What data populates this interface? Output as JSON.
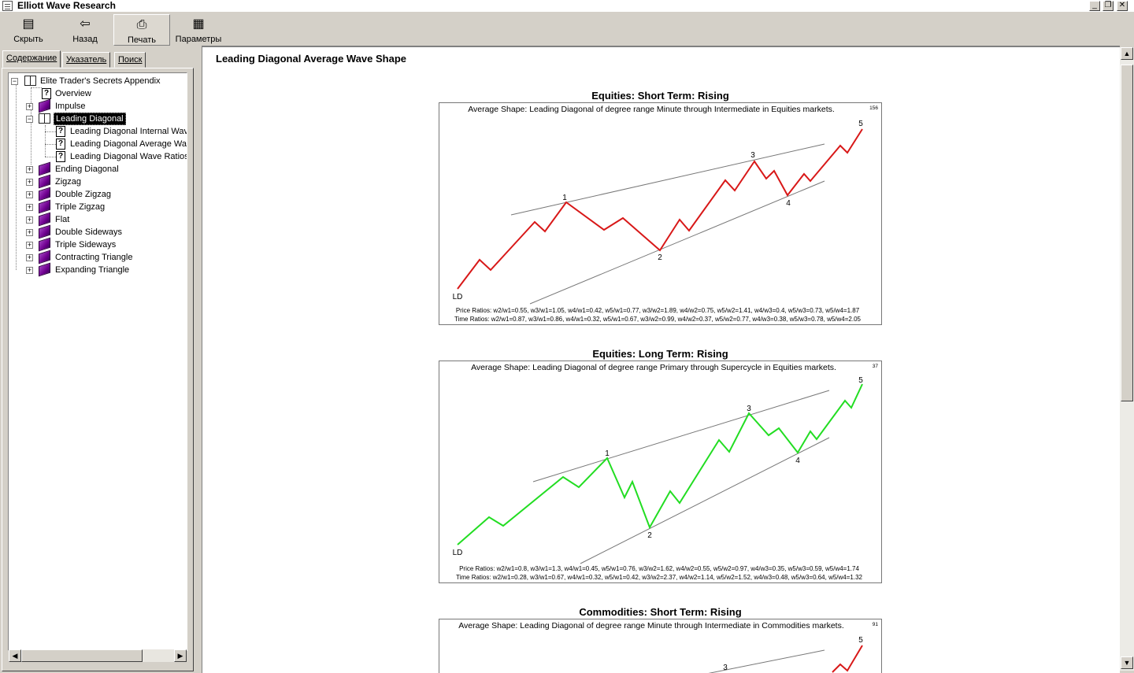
{
  "window": {
    "title": "Elliott Wave Research"
  },
  "toolbar": {
    "hide_label": "Скрыть",
    "back_label": "Назад",
    "print_label": "Печать",
    "options_label": "Параметры"
  },
  "tabs": {
    "contents": "Содержание",
    "index": "Указатель",
    "search": "Поиск"
  },
  "tree": {
    "root": "Elite Trader's Secrets Appendix",
    "overview": "Overview",
    "impulse": "Impulse",
    "leading_diagonal": "Leading Diagonal",
    "ld_internal": "Leading Diagonal Internal Wave Structure",
    "ld_average": "Leading Diagonal Average Wave Shape",
    "ld_ratios": "Leading Diagonal Wave Ratios",
    "ending_diagonal": "Ending Diagonal",
    "zigzag": "Zigzag",
    "double_zigzag": "Double Zigzag",
    "triple_zigzag": "Triple Zigzag",
    "flat": "Flat",
    "double_sideways": "Double Sideways",
    "triple_sideways": "Triple Sideways",
    "contracting_triangle": "Contracting Triangle",
    "expanding_triangle": "Expanding Triangle"
  },
  "page": {
    "heading": "Leading Diagonal Average Wave Shape"
  },
  "charts": [
    {
      "title": "Equities: Short Term: Rising",
      "subtitle": "Average Shape: Leading Diagonal of degree range Minute through Intermediate in Equities markets.",
      "count": "156",
      "color": "#d81818",
      "price_ratios": "Price Ratios: w2/w1=0.55, w3/w1=1.05, w4/w1=0.42, w5/w1=0.77, w3/w2=1.89, w4/w2=0.75, w5/w2=1.41, w4/w3=0.4, w5/w3=0.73, w5/w4=1.87",
      "time_ratios": "Time Ratios: w2/w1=0.87, w3/w1=0.86, w4/w1=0.32, w5/w1=0.67, w3/w2=0.99, w4/w2=0.37, w5/w2=0.77, w4/w3=0.38, w5/w3=0.78, w5/w4=2.05",
      "wave_labels": [
        "LD",
        "1",
        "2",
        "3",
        "4",
        "5"
      ]
    },
    {
      "title": "Equities: Long Term: Rising",
      "subtitle": "Average Shape: Leading Diagonal of degree range Primary through Supercycle in Equities markets.",
      "count": "37",
      "color": "#22dd22",
      "price_ratios": "Price Ratios: w2/w1=0.8, w3/w1=1.3, w4/w1=0.45, w5/w1=0.76, w3/w2=1.62, w4/w2=0.55, w5/w2=0.97, w4/w3=0.35, w5/w3=0.59, w5/w4=1.74",
      "time_ratios": "Time Ratios: w2/w1=0.28, w3/w1=0.67, w4/w1=0.32, w5/w1=0.42, w3/w2=2.37, w4/w2=1.14, w5/w2=1.52, w4/w3=0.48, w5/w3=0.64, w5/w4=1.32",
      "wave_labels": [
        "LD",
        "1",
        "2",
        "3",
        "4",
        "5"
      ]
    },
    {
      "title": "Commodities: Short Term: Rising",
      "subtitle": "Average Shape: Leading Diagonal of degree range Minute through Intermediate in Commodities markets.",
      "count": "91",
      "color": "#d81818",
      "wave_labels": [
        "3",
        "5"
      ]
    }
  ]
}
